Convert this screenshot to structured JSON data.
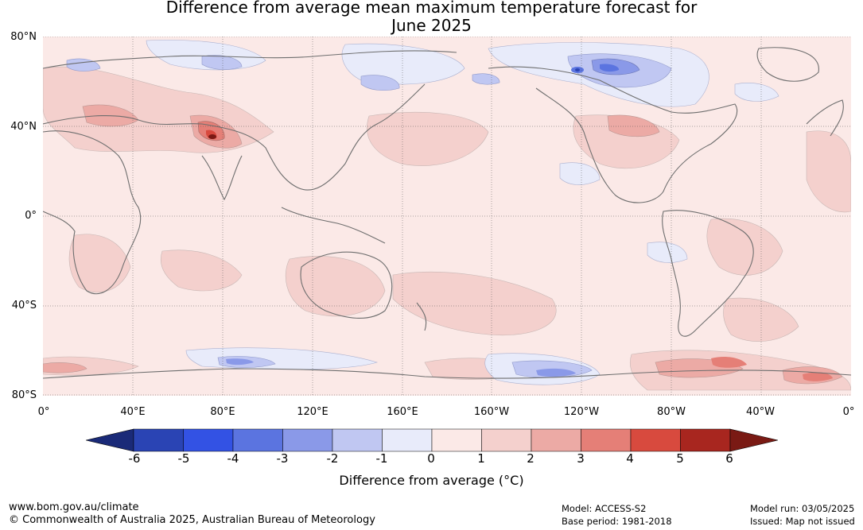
{
  "title": {
    "line1": "Difference from average mean maximum temperature forecast for",
    "line2": "June 2025"
  },
  "map": {
    "lat_labels": [
      "80°N",
      "40°N",
      "0°",
      "40°S",
      "80°S"
    ],
    "lon_labels": [
      "0°",
      "40°E",
      "80°E",
      "120°E",
      "160°E",
      "160°W",
      "120°W",
      "80°W",
      "40°W",
      "0°"
    ],
    "background_color": "#fbe9e7"
  },
  "colorbar": {
    "ticks": [
      "-6",
      "-5",
      "-4",
      "-3",
      "-2",
      "-1",
      "0",
      "1",
      "2",
      "3",
      "4",
      "5",
      "6"
    ],
    "colors": [
      "#1a2a78",
      "#2a44b4",
      "#3352e4",
      "#5b74e0",
      "#8a99e8",
      "#c0c7f2",
      "#e8ebfa",
      "#fbe9e7",
      "#f4d0cd",
      "#ecaaa5",
      "#e57f77",
      "#d84a3e",
      "#a8261f",
      "#7a1a14"
    ],
    "label": "Difference from average (°C)"
  },
  "footer": {
    "site": "www.bom.gov.au/climate",
    "copyright": "© Commonwealth of Australia 2025, Australian Bureau of Meteorology",
    "model": "Model: ACCESS-S2",
    "base_period": "Base period: 1981-2018",
    "model_run": "Model run: 03/05/2025",
    "issued": "Issued: Map not issued"
  }
}
